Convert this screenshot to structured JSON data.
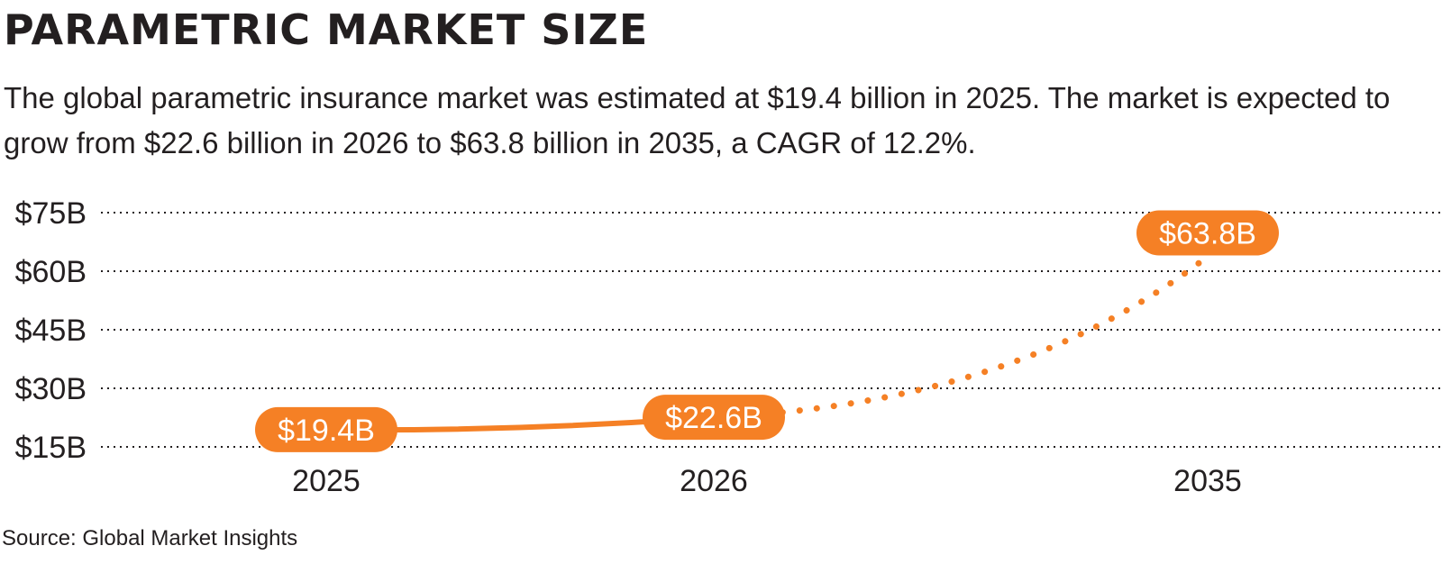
{
  "header": {
    "title": "PARAMETRIC MARKET SIZE",
    "subtitle": "The global parametric insurance market was estimated at $19.4 billion in 2025. The market is expected to grow from $22.6 billion in 2026 to $63.8 billion in 2035, a CAGR of 12.2%."
  },
  "footer": {
    "source": "Source: Global Market Insights"
  },
  "colors": {
    "accent": "#F58025",
    "text": "#231F20",
    "grid": "#231F20"
  },
  "chart_data": {
    "type": "line",
    "title": "PARAMETRIC MARKET SIZE",
    "xlabel": "",
    "ylabel": "",
    "categories": [
      "2025",
      "2026",
      "2035"
    ],
    "values": [
      19.4,
      22.6,
      63.8
    ],
    "data_labels": [
      "$19.4B",
      "$22.6B",
      "$63.8B"
    ],
    "segments": [
      {
        "from": "2025",
        "to": "2026",
        "style": "solid"
      },
      {
        "from": "2026",
        "to": "2035",
        "style": "dotted"
      }
    ],
    "ylim": [
      15,
      75
    ],
    "yticks": [
      75,
      60,
      45,
      30,
      15
    ],
    "ytick_labels": [
      "$75B",
      "$60B",
      "$45B",
      "$30B",
      "$15B"
    ],
    "grid": true,
    "legend": "none"
  }
}
